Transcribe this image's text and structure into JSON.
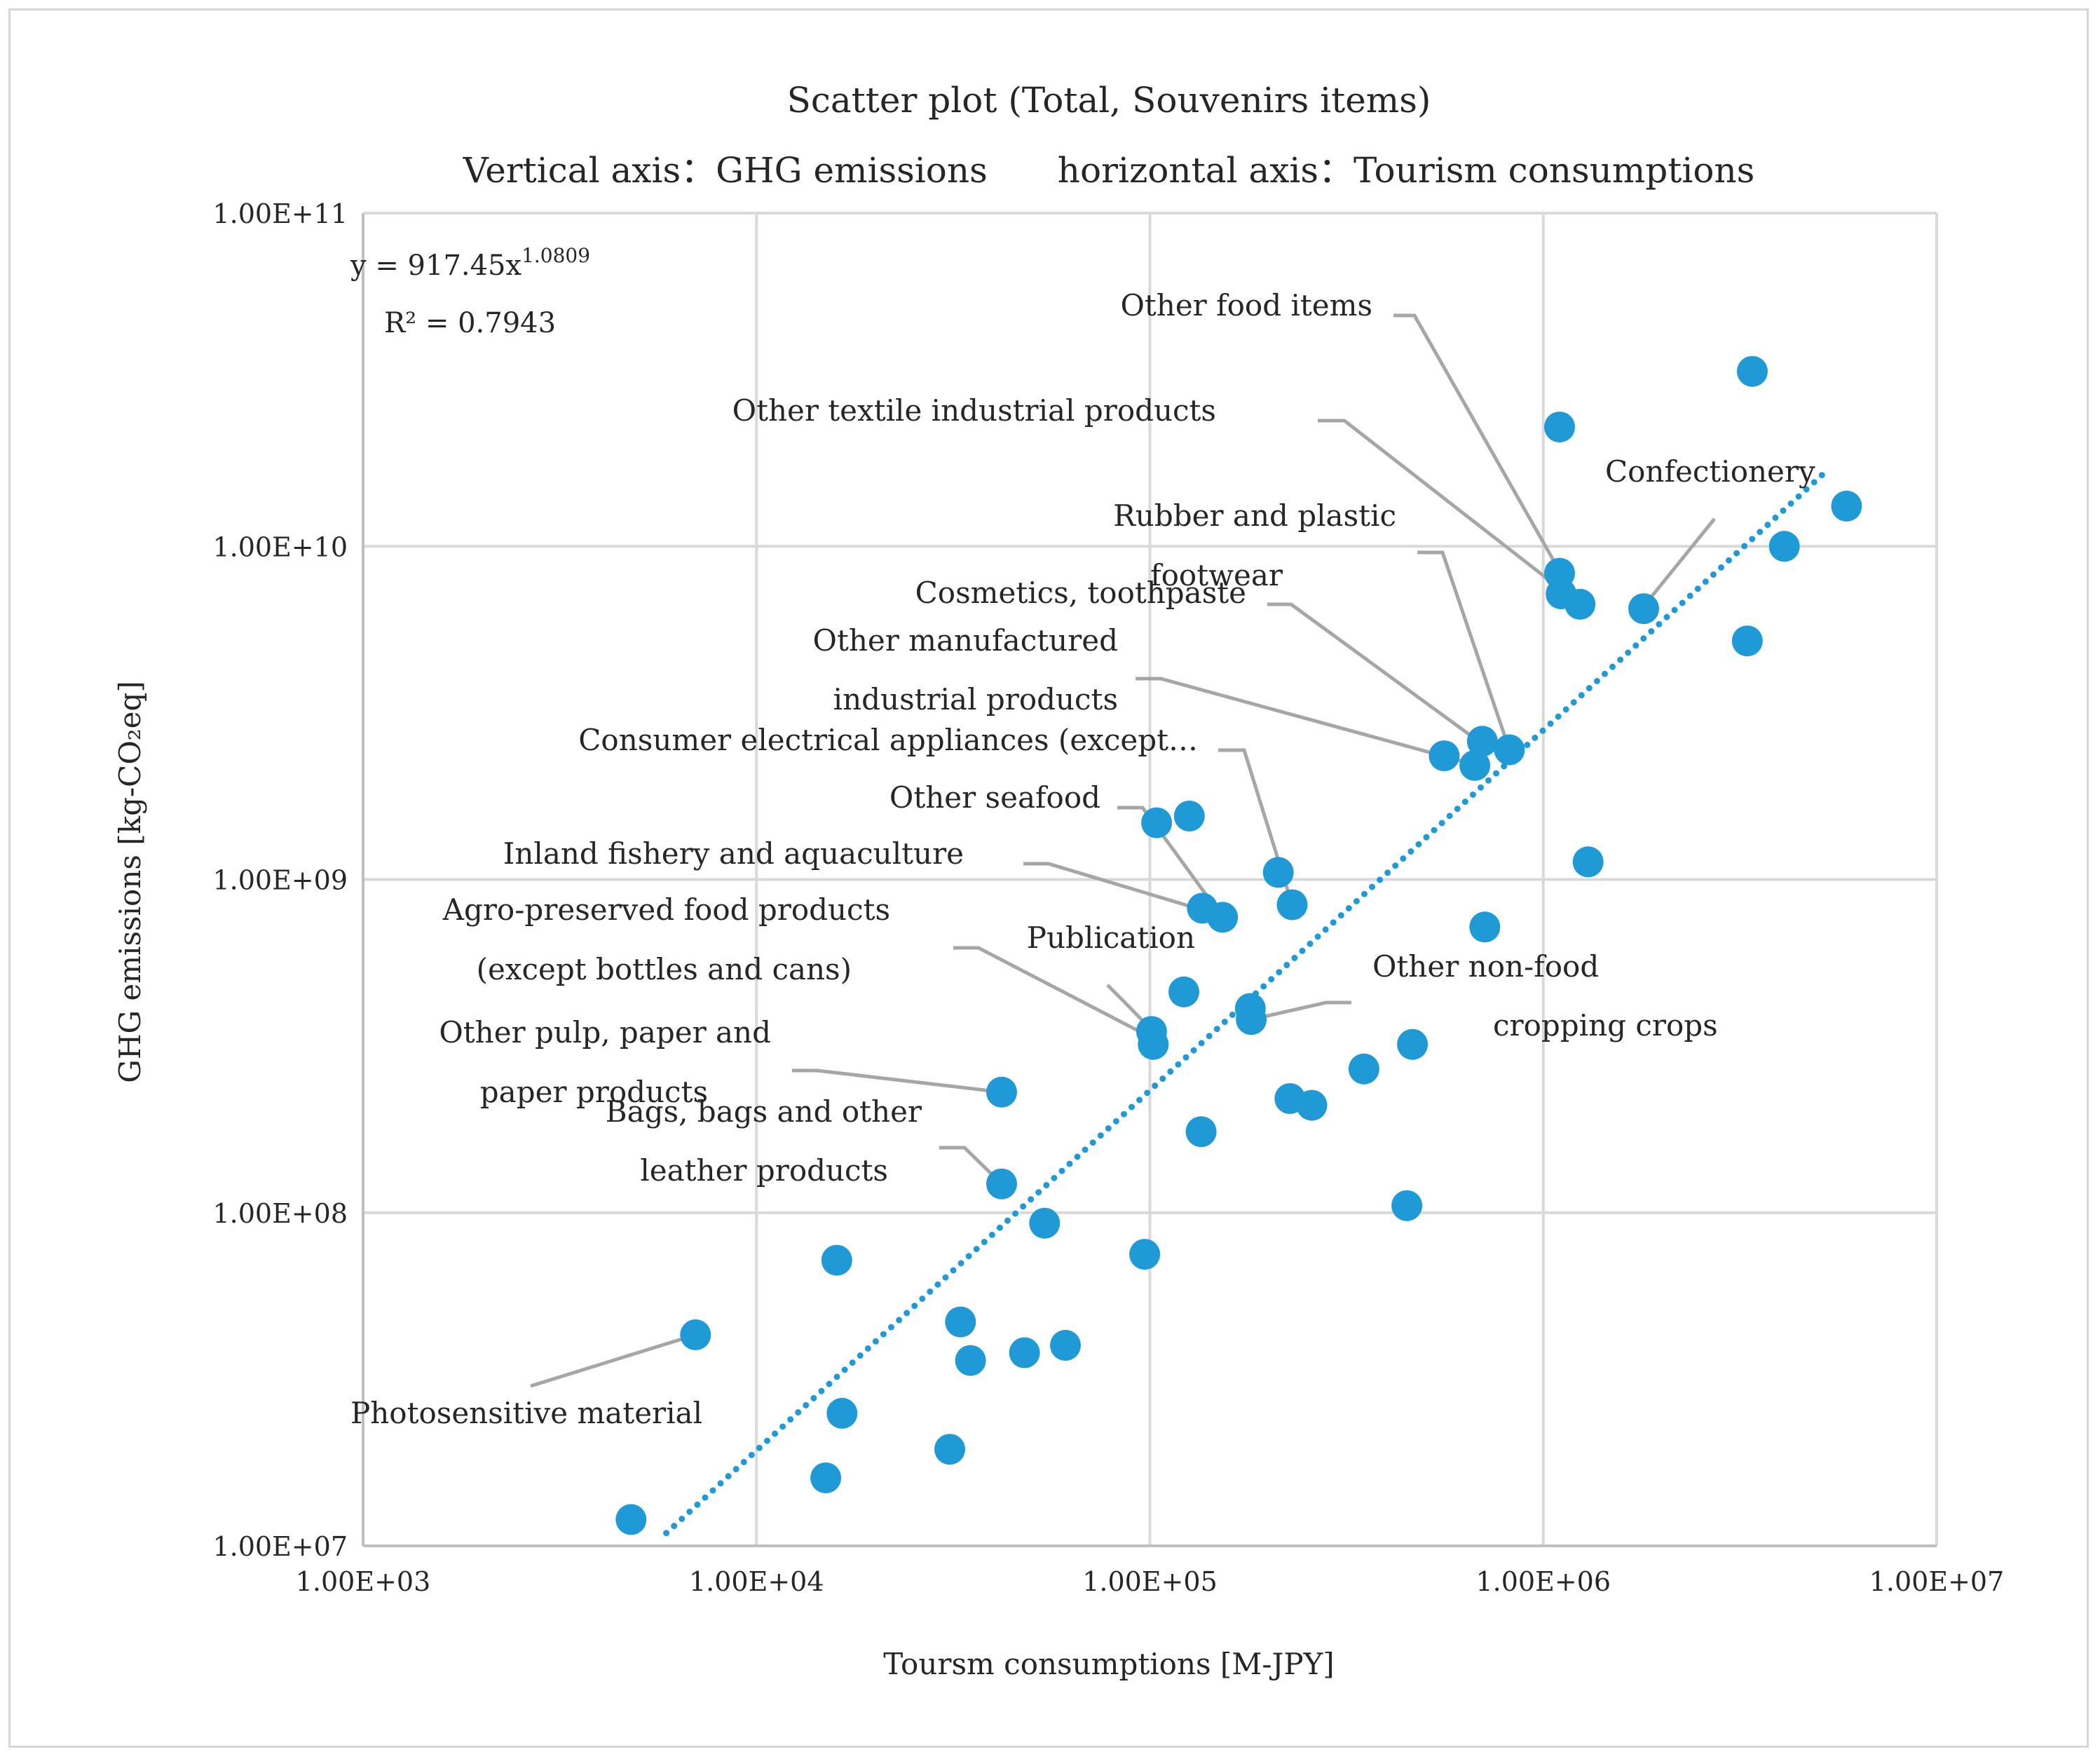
{
  "chart_data": {
    "type": "scatter",
    "title_lines": [
      "Scatter plot (Total, Souvenirs items)",
      "Vertical axis：GHG emissions　　horizontal axis：Tourism consumptions"
    ],
    "xlabel": "Toursm consumptions [M-JPY]",
    "ylabel": "GHG emissions [kg-CO₂eq]",
    "xscale": "log",
    "yscale": "log",
    "xlim": [
      1000,
      10000000
    ],
    "ylim": [
      10000000,
      100000000000
    ],
    "x_ticks": [
      "1.00E+03",
      "1.00E+04",
      "1.00E+05",
      "1.00E+06",
      "1.00E+07"
    ],
    "y_ticks": [
      "1.00E+07",
      "1.00E+08",
      "1.00E+09",
      "1.00E+10",
      "1.00E+11"
    ],
    "grid": true,
    "colors": {
      "point": "#1f9ad6",
      "trendline": "#1f9ad6",
      "leader": "#a6a6a6",
      "grid": "#d9d9d9"
    },
    "trendline": {
      "type": "power",
      "a": 917.45,
      "b": 1.0809,
      "equation_prefix": "y = 917.45x",
      "equation_exponent": "1.0809",
      "r2_label": "R² = 0.7943",
      "x_range": [
        5900,
        5300000
      ]
    },
    "points": [
      {
        "x": 4800,
        "y": 12000000
      },
      {
        "x": 7000,
        "y": 43000000
      },
      {
        "x": 15000,
        "y": 16000000
      },
      {
        "x": 16000,
        "y": 72000000
      },
      {
        "x": 16500,
        "y": 25000000
      },
      {
        "x": 31000,
        "y": 19500000
      },
      {
        "x": 33000,
        "y": 47000000
      },
      {
        "x": 35000,
        "y": 36000000
      },
      {
        "x": 42000,
        "y": 230000000
      },
      {
        "x": 42000,
        "y": 122000000
      },
      {
        "x": 48000,
        "y": 38000000
      },
      {
        "x": 54000,
        "y": 93000000
      },
      {
        "x": 61000,
        "y": 40000000
      },
      {
        "x": 97000,
        "y": 75000000
      },
      {
        "x": 101000,
        "y": 350000000
      },
      {
        "x": 102000,
        "y": 320000000
      },
      {
        "x": 104000,
        "y": 1480000000
      },
      {
        "x": 122000,
        "y": 460000000
      },
      {
        "x": 126000,
        "y": 1550000000
      },
      {
        "x": 135000,
        "y": 175000000
      },
      {
        "x": 136000,
        "y": 820000000
      },
      {
        "x": 153000,
        "y": 770000000
      },
      {
        "x": 180000,
        "y": 410000000
      },
      {
        "x": 181000,
        "y": 380000000
      },
      {
        "x": 212000,
        "y": 1050000000
      },
      {
        "x": 227000,
        "y": 220000000
      },
      {
        "x": 230000,
        "y": 840000000
      },
      {
        "x": 258000,
        "y": 210000000
      },
      {
        "x": 350000,
        "y": 270000000
      },
      {
        "x": 450000,
        "y": 105000000
      },
      {
        "x": 465000,
        "y": 320000000
      },
      {
        "x": 560000,
        "y": 2350000000
      },
      {
        "x": 670000,
        "y": 2200000000
      },
      {
        "x": 700000,
        "y": 2600000000
      },
      {
        "x": 710000,
        "y": 720000000
      },
      {
        "x": 820000,
        "y": 2450000000
      },
      {
        "x": 1100000,
        "y": 22800000000
      },
      {
        "x": 1100000,
        "y": 8300000000
      },
      {
        "x": 1110000,
        "y": 7200000000
      },
      {
        "x": 1240000,
        "y": 6700000000
      },
      {
        "x": 1300000,
        "y": 1130000000
      },
      {
        "x": 1800000,
        "y": 6500000000
      },
      {
        "x": 3300000,
        "y": 5200000000
      },
      {
        "x": 3400000,
        "y": 33500000000
      },
      {
        "x": 4100000,
        "y": 10000000000
      },
      {
        "x": 5900000,
        "y": 13200000000
      }
    ],
    "annotations": [
      {
        "lines": [
          "Other food items"
        ],
        "target": {
          "x": 1220000,
          "y": 6800000000
        }
      },
      {
        "lines": [
          "Other textile industrial products"
        ],
        "target": {
          "x": 1130000,
          "y": 7300000000
        }
      },
      {
        "lines": [
          "Confectionery"
        ],
        "target": {
          "x": 1780000,
          "y": 6500000000
        }
      },
      {
        "lines": [
          "Rubber and plastic",
          "footwear"
        ],
        "target": {
          "x": 820000,
          "y": 2450000000
        }
      },
      {
        "lines": [
          "Cosmetics, toothpaste"
        ],
        "target": {
          "x": 700000,
          "y": 2550000000
        }
      },
      {
        "lines": [
          "Other manufactured",
          "industrial products"
        ],
        "target": {
          "x": 680000,
          "y": 2200000000
        }
      },
      {
        "lines": [
          "Consumer electrical appliances (except…"
        ],
        "target": {
          "x": 230000,
          "y": 840000000
        }
      },
      {
        "lines": [
          "Other seafood"
        ],
        "target": {
          "x": 153000,
          "y": 770000000
        }
      },
      {
        "lines": [
          "Inland fishery and aquaculture"
        ],
        "target": {
          "x": 136000,
          "y": 810000000
        }
      },
      {
        "lines": [
          "Agro-preserved food products",
          "(except bottles and cans)"
        ],
        "target": {
          "x": 101000,
          "y": 335000000
        }
      },
      {
        "lines": [
          "Publication"
        ],
        "target": {
          "x": 102000,
          "y": 350000000
        }
      },
      {
        "lines": [
          "Other non-food",
          "cropping crops"
        ],
        "target": {
          "x": 181000,
          "y": 380000000
        }
      },
      {
        "lines": [
          "Other pulp, paper and",
          "paper products"
        ],
        "target": {
          "x": 42000,
          "y": 230000000
        }
      },
      {
        "lines": [
          "Bags, bags and other",
          "leather products"
        ],
        "target": {
          "x": 42000,
          "y": 122000000
        }
      },
      {
        "lines": [
          "Photosensitive material"
        ],
        "target": {
          "x": 7000,
          "y": 43000000
        }
      }
    ]
  }
}
